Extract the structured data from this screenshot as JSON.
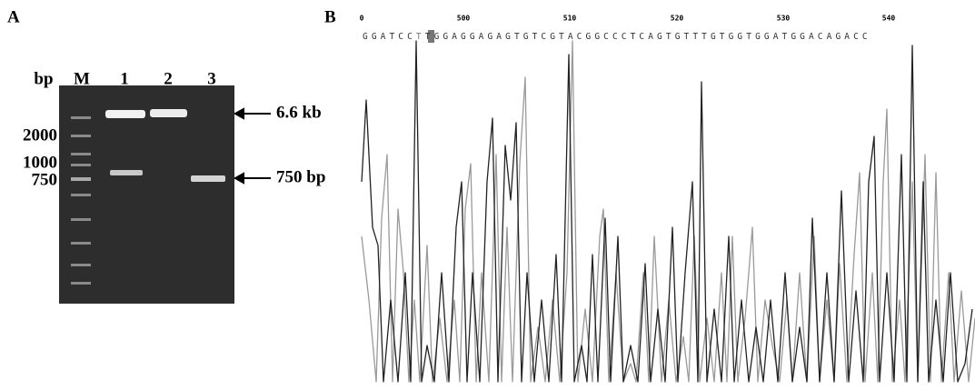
{
  "panel_a": {
    "label": "A",
    "unit": "bp",
    "lanes": [
      "M",
      "1",
      "2",
      "3"
    ],
    "markers": [
      "2000",
      "1000",
      "750"
    ],
    "annotations": [
      "6.6 kb",
      "750 bp"
    ]
  },
  "panel_b": {
    "label": "B",
    "positions": [
      "0",
      "500",
      "510",
      "520",
      "530",
      "540"
    ],
    "sequence_start": "GGATCC",
    "sequence_highlight": "T",
    "sequence_end": "TGGAGGAGAGTGTCGTACGGCCCTCAGTGTTTGTGGTGGATGGACAGACC"
  }
}
